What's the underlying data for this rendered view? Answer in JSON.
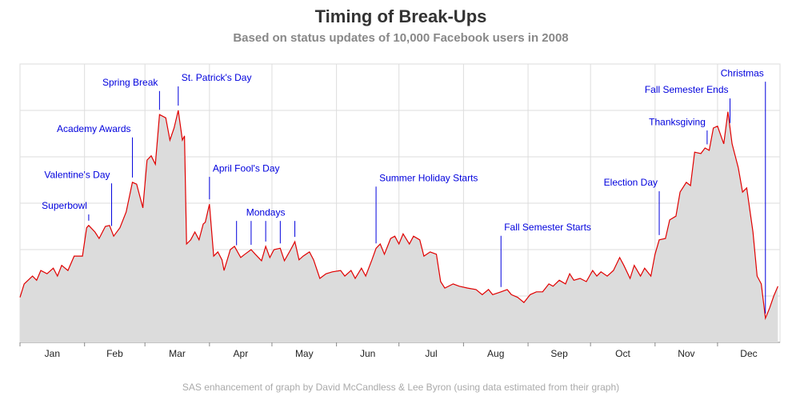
{
  "chart_data": {
    "type": "area",
    "title": "Timing of Break-Ups",
    "subtitle": "Based on status updates of 10,000 Facebook users in 2008",
    "footnote": "SAS enhancement of graph by David McCandless & Lee Byron (using data estimated from their graph)",
    "color": "#e00000",
    "fill": "#dcdcdc",
    "grid": true,
    "xlim": [
      0,
      365
    ],
    "ylim": [
      0,
      6
    ],
    "yticks": [
      0,
      1,
      2,
      3,
      4,
      5,
      6
    ],
    "xticks": [
      {
        "value": 0,
        "label": "Jan"
      },
      {
        "value": 31,
        "label": "Feb"
      },
      {
        "value": 60,
        "label": "Mar"
      },
      {
        "value": 91,
        "label": "Apr"
      },
      {
        "value": 121,
        "label": "May"
      },
      {
        "value": 152,
        "label": "Jun"
      },
      {
        "value": 182,
        "label": "Jul"
      },
      {
        "value": 213,
        "label": "Aug"
      },
      {
        "value": 244,
        "label": "Sep"
      },
      {
        "value": 274,
        "label": "Oct"
      },
      {
        "value": 305,
        "label": "Nov"
      },
      {
        "value": 335,
        "label": "Dec"
      }
    ],
    "x": [
      0,
      2,
      6,
      8,
      10,
      13,
      16,
      18,
      20,
      23,
      26,
      30,
      32,
      33,
      36,
      38,
      41,
      43,
      45,
      48,
      51,
      54,
      56,
      59,
      61,
      63,
      65,
      67,
      70,
      72,
      74,
      76,
      78,
      79,
      80,
      82,
      84,
      86,
      88,
      89,
      91,
      93,
      95,
      97,
      98,
      101,
      103,
      106,
      108,
      111,
      113,
      116,
      118,
      120,
      122,
      125,
      127,
      130,
      132,
      134,
      136,
      139,
      141,
      144,
      147,
      150,
      154,
      156,
      159,
      161,
      164,
      166,
      169,
      171,
      173,
      175,
      178,
      180,
      182,
      184,
      187,
      189,
      192,
      194,
      197,
      200,
      202,
      204,
      208,
      211,
      215,
      219,
      222,
      225,
      227,
      231,
      234,
      236,
      239,
      242,
      245,
      248,
      251,
      254,
      256,
      259,
      262,
      264,
      266,
      269,
      272,
      275,
      277,
      279,
      282,
      285,
      288,
      290,
      293,
      295,
      298,
      300,
      303,
      305,
      307,
      310,
      312,
      315,
      317,
      320,
      322,
      324,
      327,
      329,
      331,
      333,
      335,
      338,
      340,
      342,
      345,
      347,
      349,
      352,
      354,
      356,
      358,
      360,
      362,
      364
    ],
    "values": [
      0.97,
      1.26,
      1.43,
      1.34,
      1.55,
      1.48,
      1.6,
      1.43,
      1.66,
      1.55,
      1.86,
      1.86,
      2.47,
      2.52,
      2.38,
      2.24,
      2.5,
      2.52,
      2.29,
      2.47,
      2.81,
      3.45,
      3.41,
      2.9,
      3.93,
      4.02,
      3.84,
      4.91,
      4.84,
      4.36,
      4.62,
      5.0,
      4.36,
      4.45,
      2.12,
      2.21,
      2.38,
      2.21,
      2.55,
      2.59,
      2.98,
      1.86,
      1.95,
      1.78,
      1.55,
      2.0,
      2.07,
      1.83,
      1.9,
      2.0,
      1.9,
      1.76,
      2.07,
      1.83,
      2.0,
      2.03,
      1.76,
      2.0,
      2.17,
      1.78,
      1.86,
      1.95,
      1.78,
      1.38,
      1.48,
      1.52,
      1.55,
      1.43,
      1.55,
      1.38,
      1.6,
      1.43,
      1.78,
      2.03,
      2.12,
      1.9,
      2.24,
      2.29,
      2.12,
      2.34,
      2.12,
      2.29,
      2.21,
      1.86,
      1.95,
      1.9,
      1.31,
      1.17,
      1.26,
      1.21,
      1.17,
      1.14,
      1.03,
      1.14,
      1.03,
      1.09,
      1.14,
      1.03,
      0.97,
      0.86,
      1.03,
      1.09,
      1.09,
      1.26,
      1.21,
      1.34,
      1.26,
      1.48,
      1.34,
      1.38,
      1.31,
      1.55,
      1.43,
      1.52,
      1.43,
      1.55,
      1.83,
      1.66,
      1.38,
      1.66,
      1.43,
      1.6,
      1.43,
      1.9,
      2.21,
      2.24,
      2.64,
      2.72,
      3.24,
      3.45,
      3.38,
      4.1,
      4.07,
      4.19,
      4.14,
      4.62,
      4.66,
      4.28,
      4.97,
      4.28,
      3.76,
      3.24,
      3.33,
      2.38,
      1.43,
      1.26,
      0.52,
      0.74,
      1.0,
      1.21
    ],
    "annotations": [
      {
        "label": "Superbowl",
        "x": [
          33
        ],
        "y": 2.93,
        "anchor": "end"
      },
      {
        "label": "Valentine's Day",
        "x": [
          44
        ],
        "y": 3.6,
        "anchor": "end"
      },
      {
        "label": "Academy Awards",
        "x": [
          54
        ],
        "y": 4.59,
        "anchor": "end"
      },
      {
        "label": "Spring Break",
        "x": [
          67
        ],
        "y": 5.59,
        "anchor": "end"
      },
      {
        "label": "St. Patrick's Day",
        "x": [
          76
        ],
        "y": 5.69,
        "anchor": "start"
      },
      {
        "label": "April Fool's Day",
        "x": [
          91
        ],
        "y": 3.74,
        "anchor": "start"
      },
      {
        "label": "Mondays",
        "x": [
          104,
          111,
          118,
          125,
          132
        ],
        "y": 2.79,
        "anchor": "middle"
      },
      {
        "label": "Summer Holiday Starts",
        "x": [
          171
        ],
        "y": 3.53,
        "anchor": "start"
      },
      {
        "label": "Fall Semester Starts",
        "x": [
          231
        ],
        "y": 2.47,
        "anchor": "start"
      },
      {
        "label": "Election Day",
        "x": [
          307
        ],
        "y": 3.43,
        "anchor": "end"
      },
      {
        "label": "Thanksgiving",
        "x": [
          330
        ],
        "y": 4.74,
        "anchor": "end"
      },
      {
        "label": "Fall Semester Ends",
        "x": [
          341
        ],
        "y": 5.43,
        "anchor": "end"
      },
      {
        "label": "Christmas",
        "x": [
          358
        ],
        "y": 5.79,
        "anchor": "end"
      }
    ]
  }
}
